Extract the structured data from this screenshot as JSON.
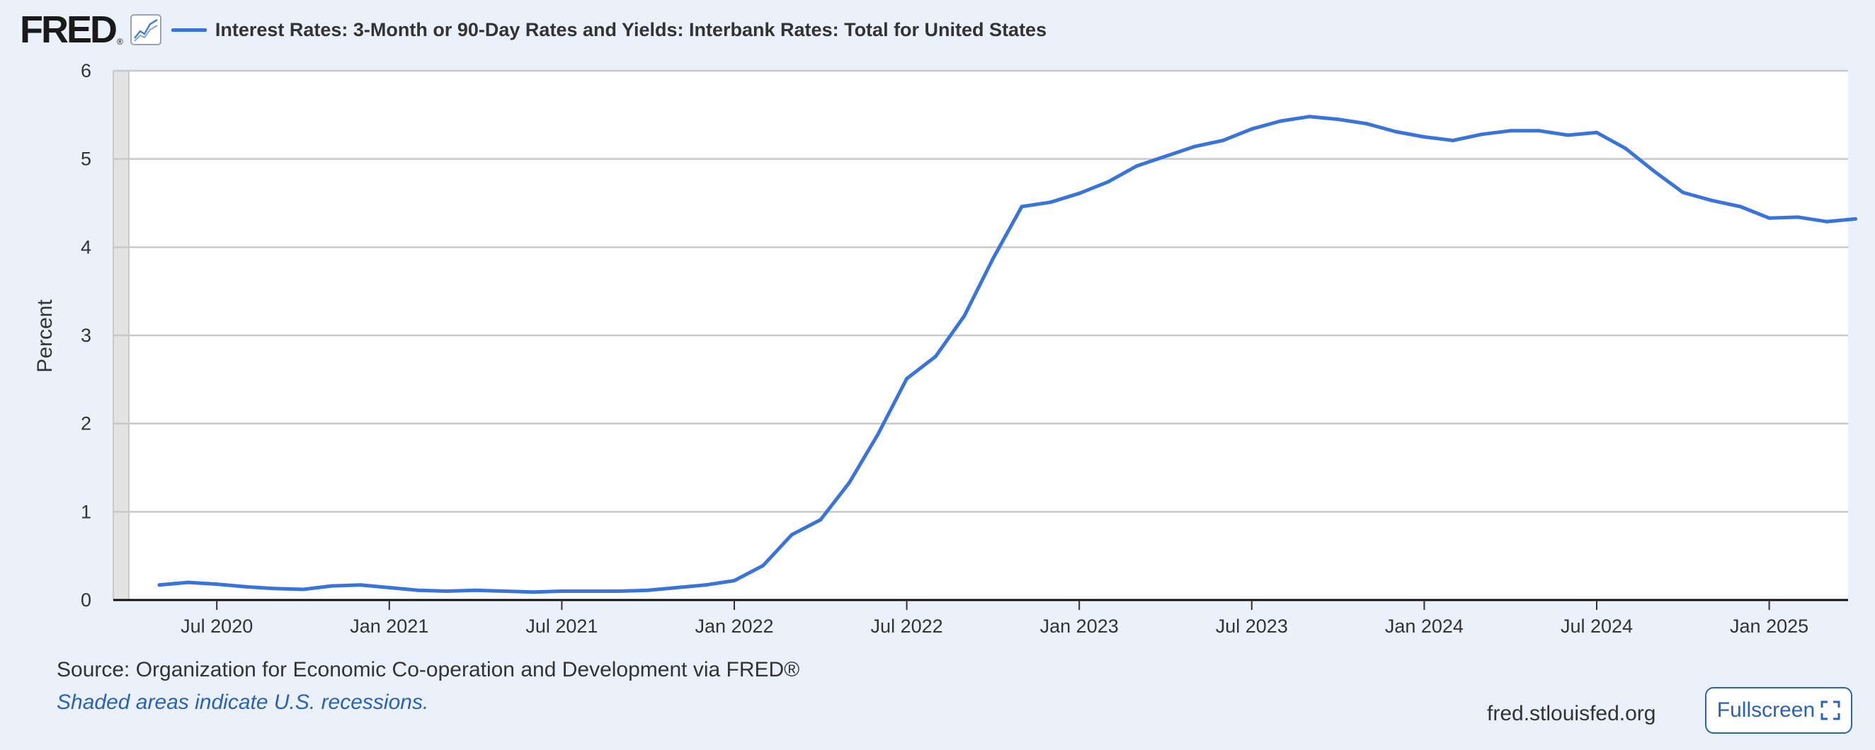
{
  "header": {
    "logo_text": "FRED",
    "logo_reg": "®",
    "graph_icon": "line-chart-icon",
    "series_title": "Interest Rates: 3-Month or 90-Day Rates and Yields: Interbank Rates: Total for United States"
  },
  "footer": {
    "source": "Source: Organization for Economic Co-operation and Development via FRED®",
    "recession_note": "Shaded areas indicate U.S. recessions.",
    "site_url": "fred.stlouisfed.org",
    "fullscreen_label": "Fullscreen",
    "fullscreen_icon": "expand-icon"
  },
  "colors": {
    "line": "#3a74d8",
    "background": "#eaf1fa",
    "plot_background": "#ffffff",
    "grid": "#c8c8c8",
    "link": "#2b62b3"
  },
  "chart_data": {
    "type": "line",
    "title": "Interest Rates: 3-Month or 90-Day Rates and Yields: Interbank Rates: Total for United States",
    "xlabel": "",
    "ylabel": "Percent",
    "ylim": [
      0,
      6
    ],
    "yticks": [
      0,
      1,
      2,
      3,
      4,
      5,
      6
    ],
    "xtick_labels": [
      "Jul 2020",
      "Jan 2021",
      "Jul 2021",
      "Jan 2022",
      "Jul 2022",
      "Jan 2023",
      "Jul 2023",
      "Jan 2024",
      "Jul 2024",
      "Jan 2025"
    ],
    "grid": true,
    "legend_position": "top-left",
    "series": [
      {
        "name": "Interest Rates: 3-Month or 90-Day Rates and Yields: Interbank Rates: Total for United States",
        "color": "#3a74d8",
        "x": [
          "2020-05",
          "2020-06",
          "2020-07",
          "2020-08",
          "2020-09",
          "2020-10",
          "2020-11",
          "2020-12",
          "2021-01",
          "2021-02",
          "2021-03",
          "2021-04",
          "2021-05",
          "2021-06",
          "2021-07",
          "2021-08",
          "2021-09",
          "2021-10",
          "2021-11",
          "2021-12",
          "2022-01",
          "2022-02",
          "2022-03",
          "2022-04",
          "2022-05",
          "2022-06",
          "2022-07",
          "2022-08",
          "2022-09",
          "2022-10",
          "2022-11",
          "2022-12",
          "2023-01",
          "2023-02",
          "2023-03",
          "2023-04",
          "2023-05",
          "2023-06",
          "2023-07",
          "2023-08",
          "2023-09",
          "2023-10",
          "2023-11",
          "2023-12",
          "2024-01",
          "2024-02",
          "2024-03",
          "2024-04",
          "2024-05",
          "2024-06",
          "2024-07",
          "2024-08",
          "2024-09",
          "2024-10",
          "2024-11",
          "2024-12",
          "2025-01",
          "2025-02",
          "2025-03",
          "2025-04"
        ],
        "values": [
          0.17,
          0.2,
          0.18,
          0.15,
          0.13,
          0.12,
          0.16,
          0.17,
          0.14,
          0.11,
          0.1,
          0.11,
          0.1,
          0.09,
          0.1,
          0.1,
          0.1,
          0.11,
          0.14,
          0.17,
          0.22,
          0.39,
          0.74,
          0.91,
          1.33,
          1.88,
          2.51,
          2.76,
          3.22,
          3.87,
          4.46,
          4.51,
          4.61,
          4.74,
          4.92,
          5.03,
          5.14,
          5.21,
          5.34,
          5.43,
          5.48,
          5.45,
          5.4,
          5.31,
          5.25,
          5.21,
          5.28,
          5.32,
          5.32,
          5.27,
          5.3,
          5.12,
          4.86,
          4.62,
          4.53,
          4.46,
          4.33,
          4.34,
          4.29,
          4.32
        ]
      }
    ]
  }
}
